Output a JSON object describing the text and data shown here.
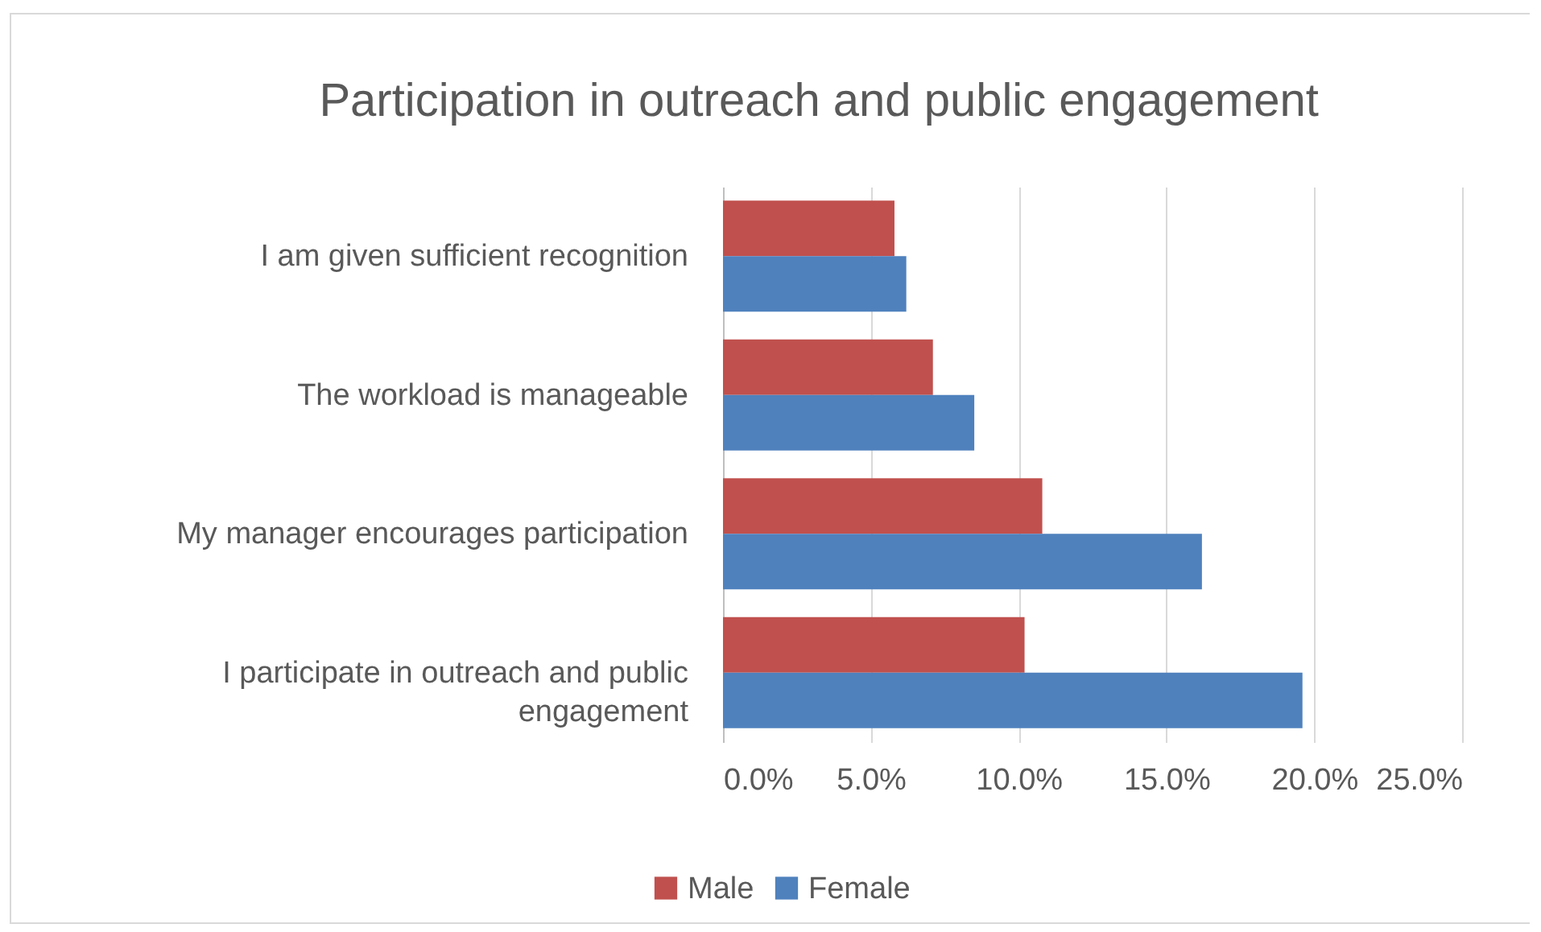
{
  "chart_data": {
    "type": "bar",
    "orientation": "horizontal",
    "title": "Participation in outreach and public engagement",
    "categories": [
      "I am given sufficient recognition",
      "The workload is manageable",
      "My manager encourages participation",
      "I participate in outreach and public engagement"
    ],
    "series": [
      {
        "name": "Male",
        "color": "#c0504d",
        "values": [
          5.8,
          7.1,
          10.8,
          10.2
        ]
      },
      {
        "name": "Female",
        "color": "#4f81bd",
        "values": [
          6.2,
          8.5,
          16.2,
          19.6
        ]
      }
    ],
    "xlim": [
      0,
      25
    ],
    "xticks": [
      {
        "value": 0,
        "label": "0.0%"
      },
      {
        "value": 5,
        "label": "5.0%"
      },
      {
        "value": 10,
        "label": "10.0%"
      },
      {
        "value": 15,
        "label": "15.0%"
      },
      {
        "value": 20,
        "label": "20.0%"
      },
      {
        "value": 25,
        "label": "25.0%"
      }
    ],
    "grid": "x",
    "legend": "bottom"
  }
}
